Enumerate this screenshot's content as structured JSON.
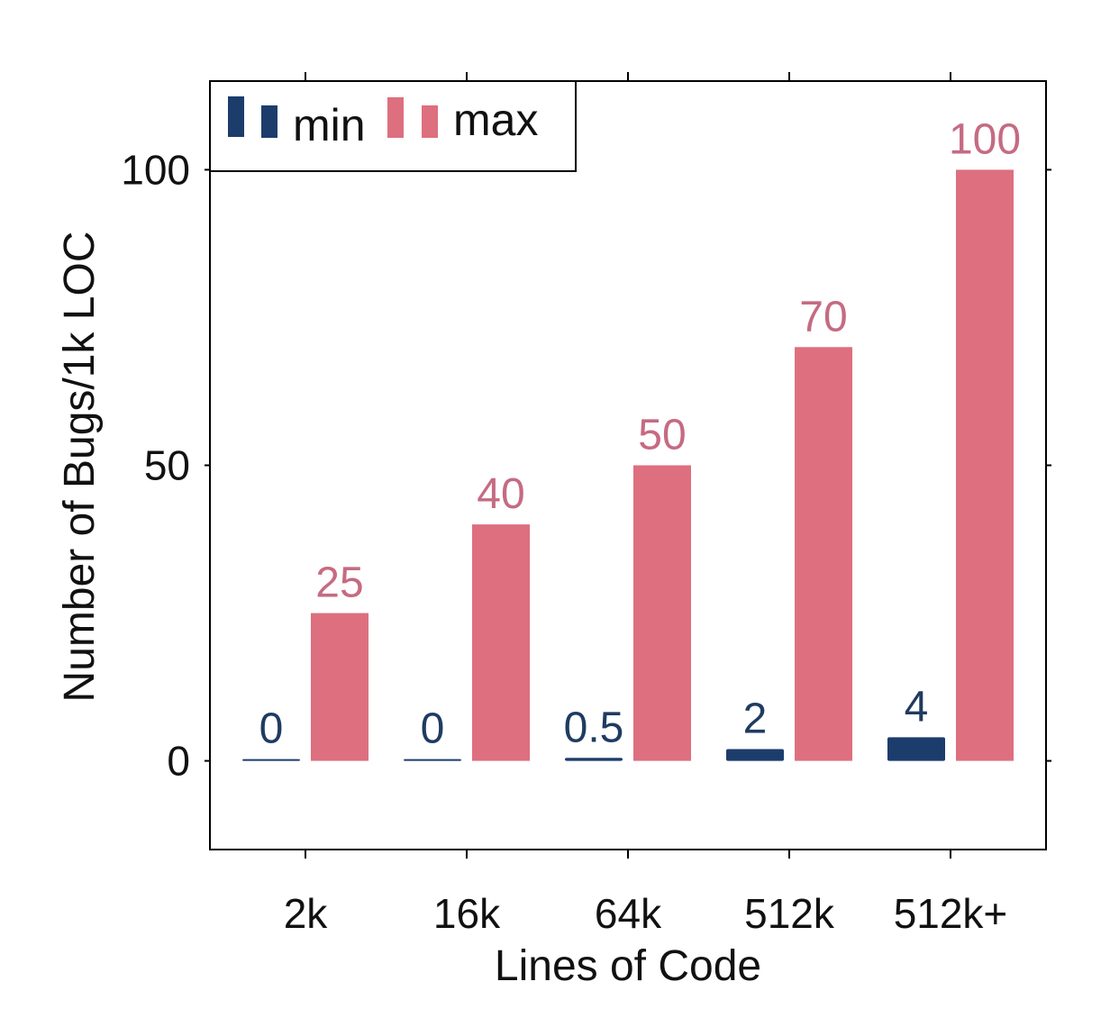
{
  "chart_data": {
    "type": "bar",
    "title": "",
    "xlabel": "Lines of Code",
    "ylabel": "Number of Bugs/1k LOC",
    "categories": [
      "2k",
      "16k",
      "64k",
      "512k",
      "512k+"
    ],
    "series": [
      {
        "name": "min",
        "values": [
          0,
          0,
          0.5,
          2,
          4
        ],
        "labels": [
          "0",
          "0",
          "0.5",
          "2",
          "4"
        ],
        "color": "#1c3d6b",
        "label_color": "#1f3b61"
      },
      {
        "name": "max",
        "values": [
          25,
          40,
          50,
          70,
          100
        ],
        "labels": [
          "25",
          "40",
          "50",
          "70",
          "100"
        ],
        "color": "#dd6f7f",
        "label_color": "#c56b82"
      }
    ],
    "ylim": [
      -15,
      115
    ],
    "yticks": [
      0,
      50,
      100
    ],
    "ytick_labels": [
      "0",
      "50",
      "100"
    ],
    "grid": false,
    "legend": {
      "position": "top-left",
      "entries": [
        "min",
        "max"
      ]
    }
  }
}
